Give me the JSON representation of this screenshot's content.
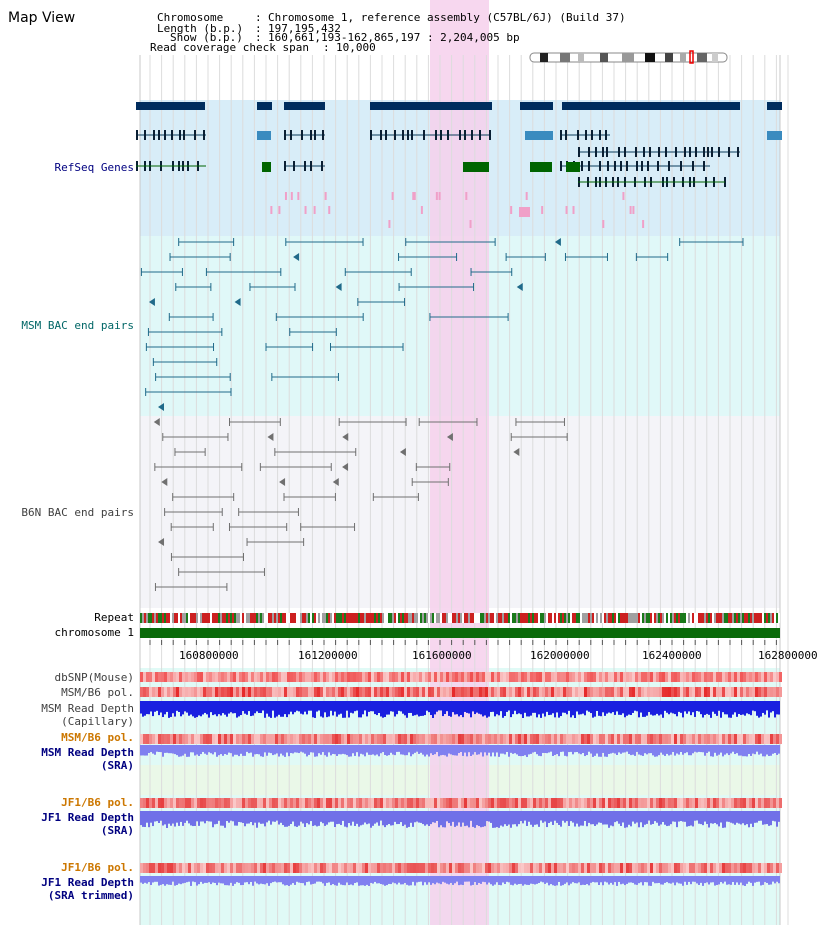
{
  "view": {
    "title": "Map View"
  },
  "header": {
    "chromosome_label": "Chromosome",
    "chromosome_value": "Chromosome 1, reference assembly (C57BL/6J) (Build 37)",
    "length_label": "Length (b.p.)",
    "length_value": "197,195,432",
    "show_label": "Show (b.p.)",
    "show_value": "160,661,193-162,865,197 : 2,204,005 bp",
    "coverage_label": "Read coverage check span",
    "coverage_value": "10,000"
  },
  "tracks": {
    "refseq": "RefSeq Genes",
    "msm_bac": "MSM BAC end pairs",
    "b6n_bac": "B6N BAC end pairs",
    "repeat": "Repeat",
    "chromosome": "chromosome 1",
    "dbsnp": "dbSNP(Mouse)",
    "msm_b6_pol": "MSM/B6 pol.",
    "msm_depth_cap_1": "MSM Read Depth",
    "msm_depth_cap_2": "(Capillary)",
    "msm_b6_pol_2": "MSM/B6 pol.",
    "msm_depth_sra_1": "MSM Read Depth",
    "msm_depth_sra_2": "(SRA)",
    "jf1_b6_pol": "JF1/B6 pol.",
    "jf1_depth_sra_1": "JF1 Read Depth",
    "jf1_depth_sra_2": "(SRA)",
    "jf1_b6_pol_2": "JF1/B6 pol.",
    "jf1_depth_trim_1": "JF1 Read Depth",
    "jf1_depth_trim_2": "(SRA trimmed)"
  },
  "axis": {
    "ticks": [
      "160800000",
      "161200000",
      "161600000",
      "162000000",
      "162400000",
      "162800000"
    ]
  },
  "colors": {
    "refseq_bg": "#d8edf8",
    "msm_bg": "#e0f8f8",
    "b6n_bg": "#f4f4f8",
    "lower_bg": "#e0faf6",
    "highlight": "#f6d0ec",
    "gene_dark": "#002d5e",
    "gene_green": "#006400",
    "msm_pair": "#206a8a",
    "b6n_pair": "#707070",
    "label_navy": "#000080",
    "label_teal": "#006666",
    "label_orange": "#cc7700",
    "label_gray": "#404040"
  }
}
